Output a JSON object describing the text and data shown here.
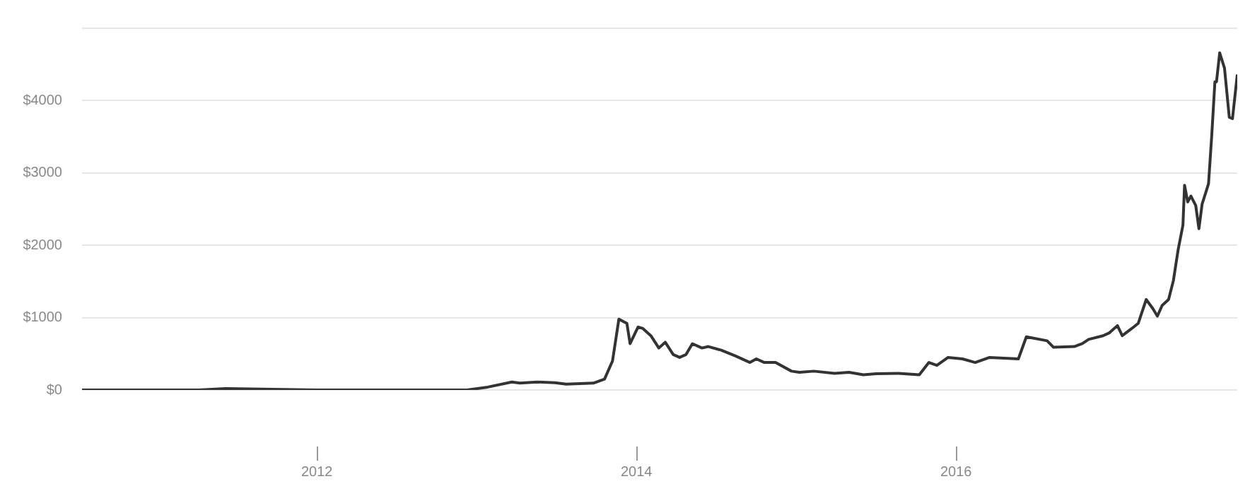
{
  "chart_data": {
    "type": "line",
    "line_style": "solid",
    "marker": "none",
    "grid": "y",
    "legend": false,
    "x": [
      2010.53,
      2011.26,
      2011.43,
      2012.0,
      2012.94,
      2013.07,
      2013.22,
      2013.27,
      2013.38,
      2013.49,
      2013.56,
      2013.73,
      2013.8,
      2013.85,
      2013.89,
      2013.94,
      2013.96,
      2014.01,
      2014.04,
      2014.09,
      2014.14,
      2014.18,
      2014.23,
      2014.27,
      2014.31,
      2014.35,
      2014.41,
      2014.45,
      2014.53,
      2014.62,
      2014.71,
      2014.75,
      2014.8,
      2014.87,
      2014.97,
      2015.02,
      2015.11,
      2015.24,
      2015.33,
      2015.42,
      2015.5,
      2015.64,
      2015.77,
      2015.83,
      2015.88,
      2015.95,
      2016.04,
      2016.12,
      2016.21,
      2016.39,
      2016.44,
      2016.57,
      2016.61,
      2016.74,
      2016.79,
      2016.83,
      2016.92,
      2016.96,
      2017.01,
      2017.04,
      2017.1,
      2017.14,
      2017.19,
      2017.23,
      2017.26,
      2017.29,
      2017.33,
      2017.36,
      2017.39,
      2017.42,
      2017.43,
      2017.45,
      2017.47,
      2017.5,
      2017.52,
      2017.54,
      2017.58,
      2017.6,
      2017.62,
      2017.63,
      2017.65,
      2017.68,
      2017.71,
      2017.73,
      2017.76
    ],
    "series": [
      {
        "color": "#333333",
        "values": [
          0,
          0,
          20,
          0,
          0,
          40,
          110,
          95,
          110,
          100,
          80,
          95,
          150,
          400,
          980,
          920,
          640,
          870,
          850,
          750,
          580,
          660,
          490,
          450,
          490,
          640,
          580,
          600,
          550,
          470,
          380,
          430,
          380,
          380,
          260,
          245,
          260,
          230,
          245,
          210,
          225,
          230,
          210,
          380,
          340,
          450,
          430,
          380,
          450,
          430,
          735,
          680,
          590,
          600,
          640,
          700,
          750,
          790,
          890,
          750,
          850,
          920,
          1250,
          1130,
          1020,
          1170,
          1250,
          1510,
          1940,
          2280,
          2830,
          2600,
          2680,
          2550,
          2230,
          2570,
          2850,
          3510,
          4260,
          4260,
          4660,
          4450,
          3770,
          3750,
          4360
        ]
      }
    ],
    "xlim": [
      2010.53,
      2017.76
    ],
    "xticks": [
      2012,
      2014,
      2016
    ],
    "ylim": [
      0,
      5000
    ],
    "yticks": [
      {
        "value": 0,
        "label": "$0"
      },
      {
        "value": 1000,
        "label": "$1000"
      },
      {
        "value": 2000,
        "label": "$2000"
      },
      {
        "value": 3000,
        "label": "$3000"
      },
      {
        "value": 4000,
        "label": "$4000"
      },
      {
        "value": 5000,
        "label": null
      }
    ]
  }
}
